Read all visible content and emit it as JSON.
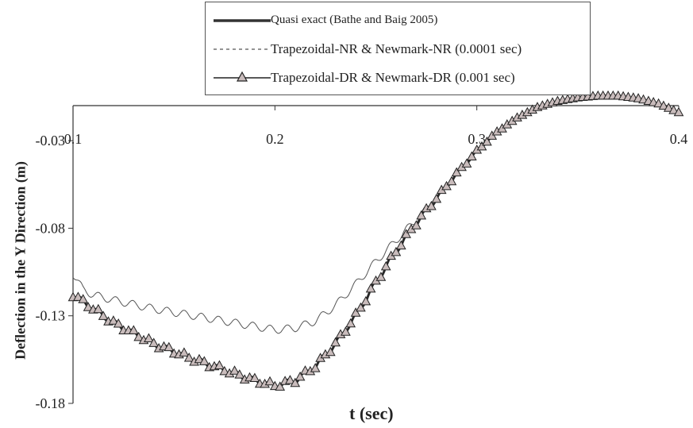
{
  "chart_data": {
    "type": "line",
    "xlabel": "t (sec)",
    "ylabel": "Deflection in the Y Direction (m)",
    "xlim": [
      0.1,
      0.4
    ],
    "ylim": [
      -0.18,
      -0.01
    ],
    "x_ticks": [
      "0.1",
      "0.2",
      "0.3",
      "0.4"
    ],
    "y_ticks": [
      "-0.03",
      "-0.08",
      "-0.13",
      "-0.18"
    ],
    "x_axis_position": "top",
    "grid": false,
    "legend_position": "top",
    "series": [
      {
        "name": "Quasi exact (Bathe and Baig 2005)",
        "style": "solid-thick",
        "color": "#333333",
        "x": [
          0.1,
          0.12,
          0.14,
          0.16,
          0.18,
          0.19,
          0.2,
          0.21,
          0.22,
          0.23,
          0.24,
          0.25,
          0.26,
          0.27,
          0.28,
          0.29,
          0.3,
          0.31,
          0.32,
          0.33,
          0.34,
          0.35,
          0.36,
          0.37,
          0.38,
          0.39,
          0.4
        ],
        "y": [
          -0.118,
          -0.134,
          -0.146,
          -0.155,
          -0.163,
          -0.167,
          -0.17,
          -0.167,
          -0.159,
          -0.146,
          -0.13,
          -0.111,
          -0.093,
          -0.077,
          -0.063,
          -0.049,
          -0.036,
          -0.025,
          -0.017,
          -0.011,
          -0.0075,
          -0.0055,
          -0.0045,
          -0.0045,
          -0.006,
          -0.009,
          -0.014
        ]
      },
      {
        "name": "Trapezoidal-NR & Newmark-NR (0.0001 sec)",
        "style": "dashed-thin",
        "color": "#555555",
        "x": [
          0.1,
          0.105,
          0.11,
          0.12,
          0.14,
          0.16,
          0.18,
          0.2,
          0.21,
          0.22,
          0.23,
          0.24,
          0.25,
          0.26,
          0.27,
          0.28,
          0.29,
          0.3,
          0.31,
          0.32,
          0.33,
          0.34,
          0.35,
          0.36,
          0.37,
          0.38,
          0.39,
          0.4
        ],
        "y": [
          -0.106,
          -0.115,
          -0.118,
          -0.121,
          -0.126,
          -0.13,
          -0.134,
          -0.138,
          -0.137,
          -0.133,
          -0.124,
          -0.112,
          -0.099,
          -0.087,
          -0.075,
          -0.063,
          -0.049,
          -0.036,
          -0.025,
          -0.017,
          -0.011,
          -0.0075,
          -0.0055,
          -0.0045,
          -0.0045,
          -0.006,
          -0.009,
          -0.014
        ]
      },
      {
        "name": "Trapezoidal-DR & Newmark-DR (0.001 sec)",
        "style": "line-triangles",
        "color": "#222222",
        "marker_fill": "#c9bcbc",
        "x": [
          0.1,
          0.12,
          0.14,
          0.16,
          0.18,
          0.19,
          0.2,
          0.21,
          0.22,
          0.23,
          0.24,
          0.25,
          0.26,
          0.27,
          0.28,
          0.29,
          0.3,
          0.31,
          0.32,
          0.33,
          0.34,
          0.35,
          0.36,
          0.37,
          0.38,
          0.39,
          0.4
        ],
        "y": [
          -0.118,
          -0.134,
          -0.146,
          -0.155,
          -0.163,
          -0.167,
          -0.17,
          -0.167,
          -0.159,
          -0.146,
          -0.13,
          -0.111,
          -0.093,
          -0.077,
          -0.063,
          -0.049,
          -0.036,
          -0.025,
          -0.017,
          -0.011,
          -0.0075,
          -0.0055,
          -0.0045,
          -0.0045,
          -0.006,
          -0.009,
          -0.014
        ]
      }
    ]
  }
}
